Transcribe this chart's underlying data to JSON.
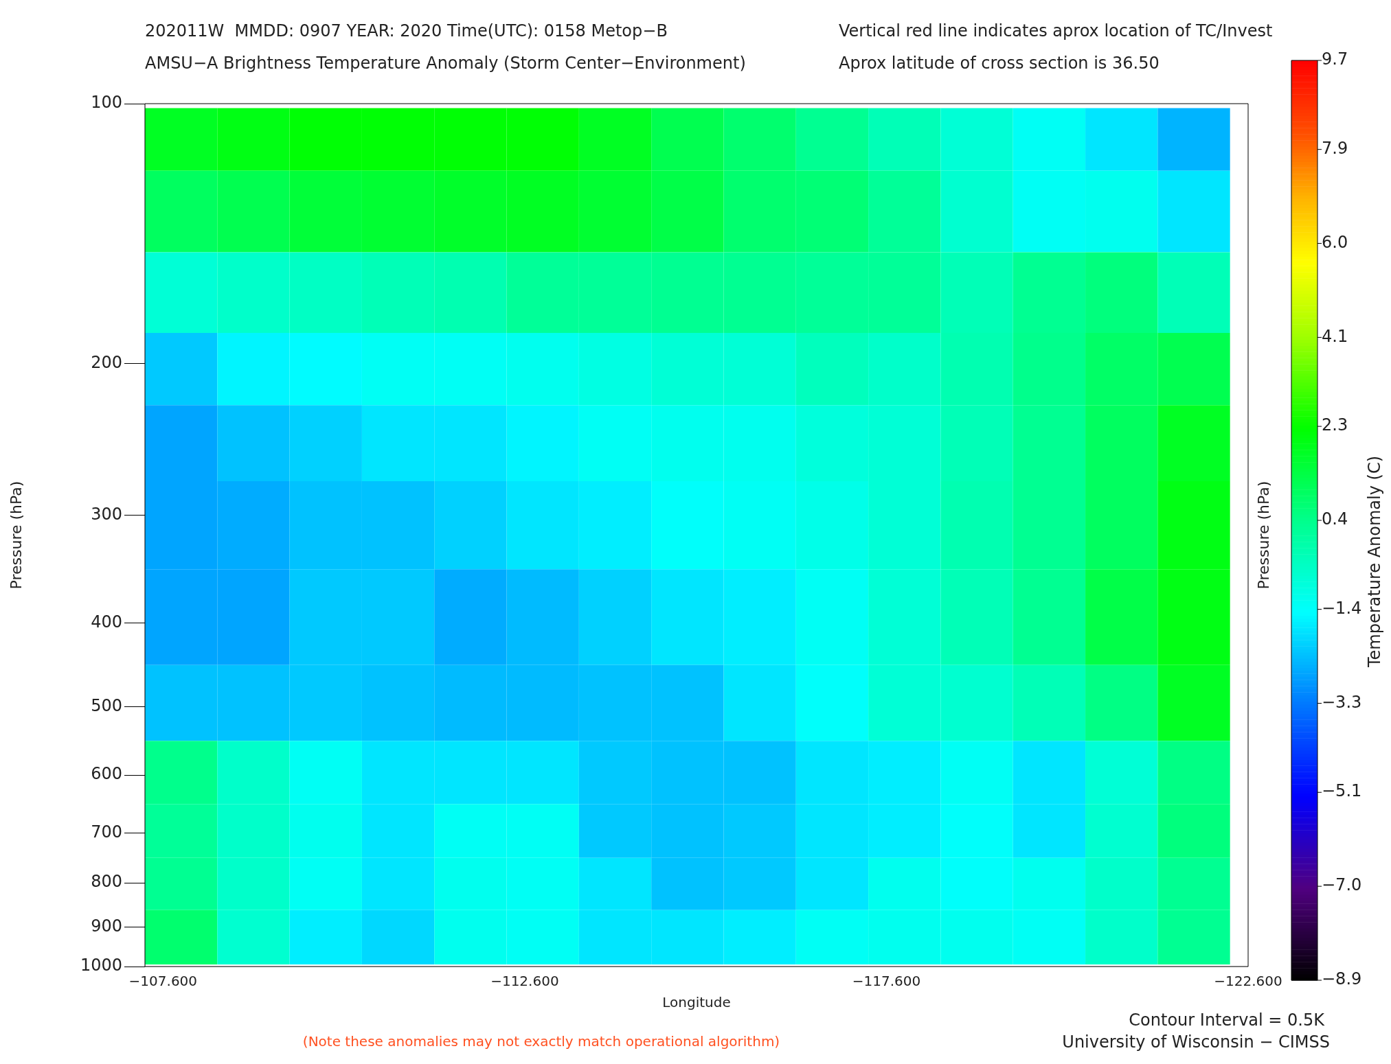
{
  "chart_data": {
    "type": "heatmap",
    "title": "202011W  MMDD: 0907 YEAR: 2020 Time(UTC): 0158 Metop−B",
    "subtitle": "AMSU−A Brightness Temperature Anomaly (Storm Center−Environment)",
    "xlabel": "Longitude",
    "ylabel": "Pressure (hPa)",
    "y2label": "Pressure (hPa)",
    "clabel": "Temperature Anomaly (C)",
    "annotations": [
      "Vertical red line indicates aprox location of TC/Invest",
      "Aprox latitude of cross section is 36.50",
      "Contour Interval = 0.5K",
      "University of Wisconsin − CIMSS",
      "(Note these anomalies may not exactly match operational algorithm)"
    ],
    "x": [
      -107.85,
      -108.85,
      -109.85,
      -110.85,
      -111.85,
      -112.85,
      -113.85,
      -114.85,
      -115.85,
      -116.85,
      -117.85,
      -118.85,
      -119.85,
      -120.85,
      -121.85
    ],
    "y": [
      110,
      130,
      170,
      200,
      250,
      300,
      400,
      500,
      600,
      700,
      800,
      925
    ],
    "cells": [
      [
        1.8,
        2.0,
        2.2,
        2.2,
        2.2,
        2.2,
        1.8,
        1.2,
        0.8,
        0.3,
        -0.3,
        -0.8,
        -1.3,
        -1.8,
        -2.5
      ],
      [
        1.0,
        1.2,
        1.5,
        1.6,
        1.7,
        1.8,
        1.6,
        1.3,
        0.8,
        0.7,
        0.2,
        -0.7,
        -1.3,
        -1.2,
        -1.8
      ],
      [
        -0.8,
        -0.6,
        -0.5,
        -0.3,
        -0.2,
        0.2,
        0.2,
        0.3,
        0.3,
        0.2,
        0.2,
        -0.3,
        0.3,
        0.6,
        -0.3
      ],
      [
        -2.2,
        -1.6,
        -1.5,
        -1.3,
        -1.3,
        -1.2,
        -1.0,
        -0.8,
        -0.8,
        -0.4,
        -0.6,
        -0.2,
        0.4,
        0.9,
        1.2
      ],
      [
        -2.7,
        -2.3,
        -2.1,
        -1.8,
        -1.8,
        -1.6,
        -1.3,
        -1.2,
        -1.2,
        -0.9,
        -0.8,
        -0.3,
        0.3,
        1.0,
        1.8
      ],
      [
        -2.7,
        -2.6,
        -2.3,
        -2.3,
        -2.1,
        -1.8,
        -1.7,
        -1.4,
        -1.3,
        -1.1,
        -0.8,
        -0.2,
        0.3,
        1.0,
        2.0
      ],
      [
        -2.7,
        -2.7,
        -2.2,
        -2.2,
        -2.6,
        -2.4,
        -2.1,
        -1.8,
        -1.7,
        -1.3,
        -0.8,
        -0.3,
        0.3,
        1.3,
        2.0
      ],
      [
        -2.3,
        -2.3,
        -2.2,
        -2.3,
        -2.4,
        -2.4,
        -2.3,
        -2.3,
        -1.8,
        -1.4,
        -0.8,
        -0.7,
        -0.3,
        0.5,
        1.8
      ],
      [
        0.4,
        -0.6,
        -1.3,
        -1.8,
        -1.8,
        -1.8,
        -2.2,
        -2.3,
        -2.3,
        -1.8,
        -1.7,
        -1.3,
        -1.8,
        -0.8,
        0.5
      ],
      [
        0.2,
        -0.6,
        -1.2,
        -1.8,
        -1.3,
        -1.3,
        -2.2,
        -2.3,
        -2.2,
        -1.8,
        -1.7,
        -1.4,
        -1.8,
        -0.7,
        0.6
      ],
      [
        0.3,
        -0.6,
        -1.3,
        -1.8,
        -1.2,
        -1.3,
        -1.8,
        -2.3,
        -2.2,
        -1.8,
        -1.2,
        -1.4,
        -1.2,
        -0.6,
        0.3
      ],
      [
        0.8,
        -0.7,
        -1.7,
        -2.0,
        -1.2,
        -1.3,
        -1.8,
        -1.8,
        -1.7,
        -1.3,
        -1.2,
        -1.2,
        -1.3,
        -0.6,
        0.3
      ]
    ],
    "xlim": [
      -107.35,
      -122.6
    ],
    "xticks": [
      {
        "value": -107.6,
        "label": "−107.600"
      },
      {
        "value": -112.6,
        "label": "−112.600"
      },
      {
        "value": -117.6,
        "label": "−117.600"
      },
      {
        "value": -122.6,
        "label": "−122.600"
      }
    ],
    "ylim": [
      1000,
      100
    ],
    "log": "y",
    "yticks": [
      100,
      200,
      300,
      400,
      500,
      600,
      700,
      800,
      900,
      1000
    ],
    "clim": [
      -8.9,
      9.7
    ],
    "cticks": [
      {
        "value": -8.9,
        "label": "−8.9"
      },
      {
        "value": -7.0,
        "label": "−7.0"
      },
      {
        "value": -5.1,
        "label": "−5.1"
      },
      {
        "value": -3.3,
        "label": "−3.3"
      },
      {
        "value": -1.4,
        "label": "−1.4"
      },
      {
        "value": 0.4,
        "label": "0.4"
      },
      {
        "value": 2.3,
        "label": "2.3"
      },
      {
        "value": 4.1,
        "label": "4.1"
      },
      {
        "value": 6.0,
        "label": "6.0"
      },
      {
        "value": 7.9,
        "label": "7.9"
      },
      {
        "value": 9.7,
        "label": "9.7"
      }
    ]
  }
}
